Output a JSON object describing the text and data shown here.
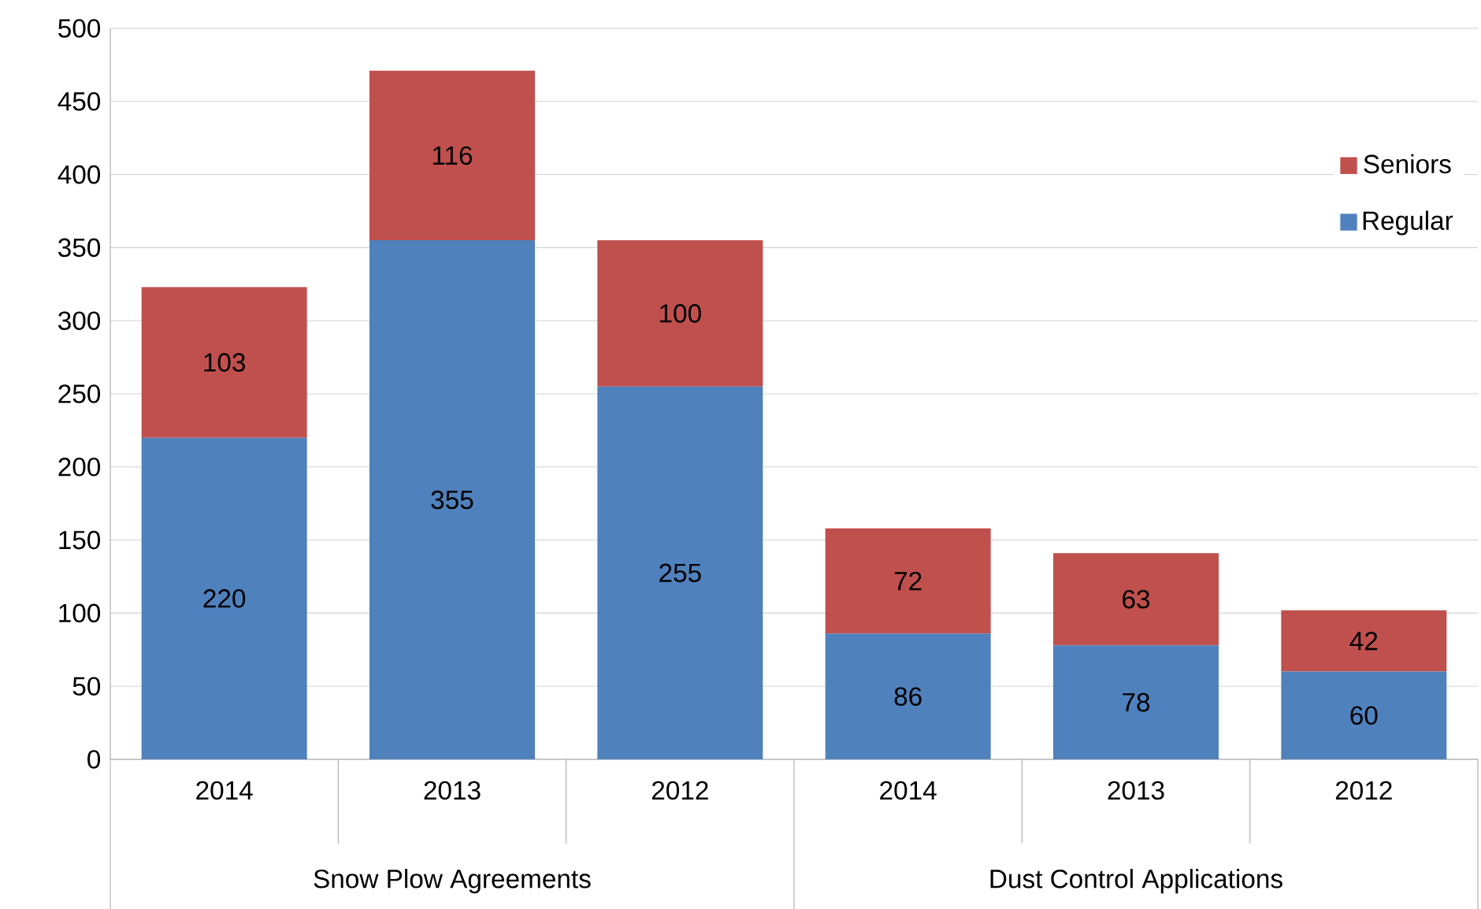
{
  "chart_data": {
    "type": "bar",
    "stacked": true,
    "categories": [
      "2014",
      "2013",
      "2012",
      "2014",
      "2013",
      "2012"
    ],
    "series": [
      {
        "name": "Regular",
        "color": "#4f81bd",
        "values": [
          220,
          355,
          255,
          86,
          78,
          60
        ]
      },
      {
        "name": "Seniors",
        "color": "#c0504d",
        "values": [
          103,
          116,
          100,
          72,
          63,
          42
        ]
      }
    ],
    "ylim": [
      0,
      500
    ],
    "yticks": [
      0,
      50,
      100,
      150,
      200,
      250,
      300,
      350,
      400,
      450,
      500
    ],
    "grid": "y",
    "legend": "right",
    "data_labels": true,
    "annotations": [
      "Snow Plow Agreements",
      "Dust Control Applications"
    ]
  }
}
